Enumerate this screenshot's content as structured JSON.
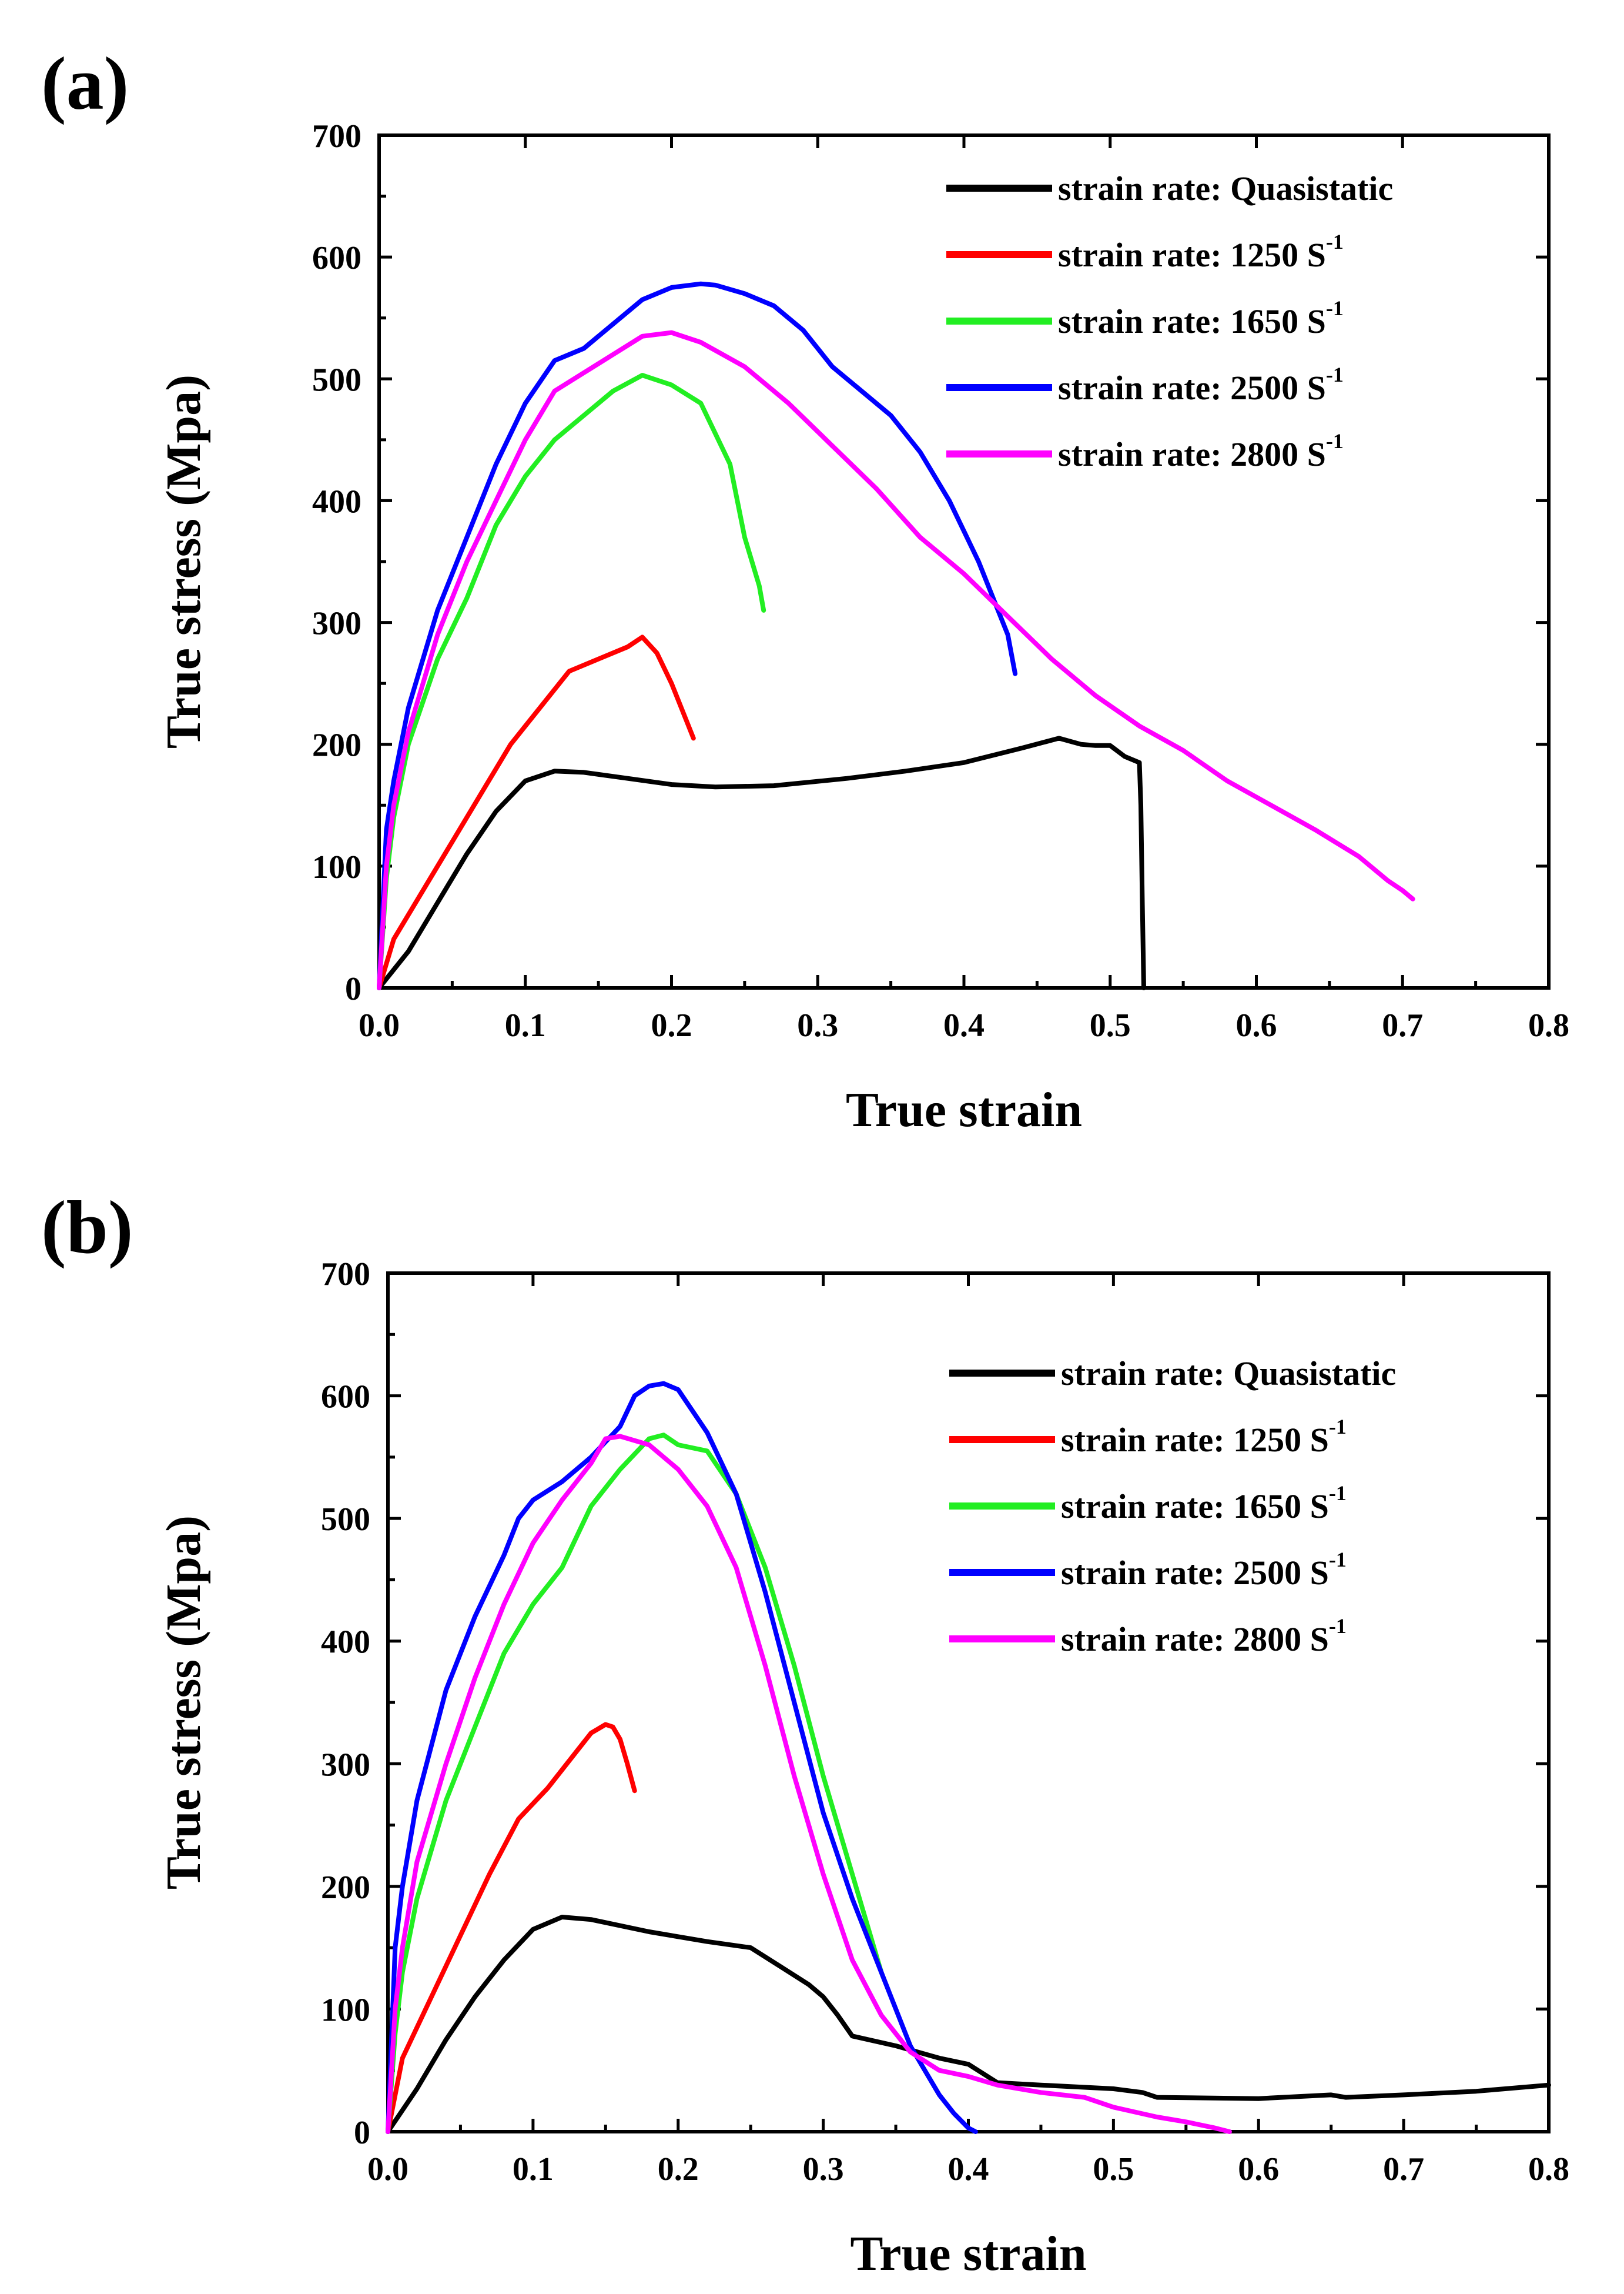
{
  "colors": {
    "quasistatic": "#000000",
    "r1250": "#ff0000",
    "r1650": "#22ee22",
    "r2500": "#0000ff",
    "r2800": "#ff00ff"
  },
  "chart_data": [
    {
      "type": "line",
      "panel_label": "(a)",
      "xlabel": "True strain",
      "ylabel": "True stress (Mpa)",
      "xlim": [
        0.0,
        0.8
      ],
      "ylim": [
        0,
        700
      ],
      "xticks": [
        "0.0",
        "0.1",
        "0.2",
        "0.3",
        "0.4",
        "0.5",
        "0.6",
        "0.7",
        "0.8"
      ],
      "yticks": [
        "0",
        "100",
        "200",
        "300",
        "400",
        "500",
        "600",
        "700"
      ],
      "legend_position": "top-right",
      "series": [
        {
          "key": "quasistatic",
          "label_main": "strain rate: Quasistatic",
          "label_sup": "",
          "x": [
            0,
            0.02,
            0.04,
            0.06,
            0.08,
            0.1,
            0.12,
            0.14,
            0.17,
            0.2,
            0.23,
            0.27,
            0.32,
            0.36,
            0.4,
            0.44,
            0.465,
            0.48,
            0.49,
            0.5,
            0.51,
            0.52,
            0.521,
            0.522,
            0.523
          ],
          "y": [
            0,
            30,
            70,
            110,
            145,
            170,
            178,
            177,
            172,
            167,
            165,
            166,
            172,
            178,
            185,
            197,
            205,
            200,
            199,
            199,
            190,
            185,
            150,
            70,
            0
          ]
        },
        {
          "key": "r1250",
          "label_main": "strain rate: 1250 S",
          "label_sup": "-1",
          "x": [
            0,
            0.01,
            0.03,
            0.05,
            0.07,
            0.09,
            0.11,
            0.13,
            0.15,
            0.17,
            0.18,
            0.19,
            0.2,
            0.21,
            0.215
          ],
          "y": [
            0,
            40,
            80,
            120,
            160,
            200,
            230,
            260,
            270,
            280,
            288,
            275,
            250,
            220,
            205
          ]
        },
        {
          "key": "r1650",
          "label_main": "strain rate: 1650 S",
          "label_sup": "-1",
          "x": [
            0,
            0.005,
            0.01,
            0.02,
            0.04,
            0.06,
            0.08,
            0.1,
            0.12,
            0.14,
            0.16,
            0.18,
            0.2,
            0.22,
            0.24,
            0.25,
            0.26,
            0.263
          ],
          "y": [
            0,
            90,
            140,
            200,
            270,
            320,
            380,
            420,
            450,
            470,
            490,
            503,
            495,
            480,
            430,
            370,
            330,
            310
          ]
        },
        {
          "key": "r2500",
          "label_main": "strain rate: 2500 S",
          "label_sup": "-1",
          "x": [
            0,
            0.005,
            0.01,
            0.02,
            0.04,
            0.06,
            0.08,
            0.1,
            0.12,
            0.14,
            0.16,
            0.18,
            0.2,
            0.22,
            0.23,
            0.25,
            0.27,
            0.29,
            0.31,
            0.33,
            0.35,
            0.37,
            0.39,
            0.41,
            0.42,
            0.43,
            0.435
          ],
          "y": [
            0,
            130,
            170,
            230,
            310,
            370,
            430,
            480,
            515,
            525,
            545,
            565,
            575,
            578,
            577,
            570,
            560,
            540,
            510,
            490,
            470,
            440,
            400,
            350,
            320,
            290,
            258
          ]
        },
        {
          "key": "r2800",
          "label_main": "strain rate: 2800 S",
          "label_sup": "-1",
          "x": [
            0,
            0.005,
            0.01,
            0.02,
            0.04,
            0.06,
            0.08,
            0.1,
            0.12,
            0.14,
            0.16,
            0.18,
            0.2,
            0.22,
            0.25,
            0.28,
            0.31,
            0.34,
            0.37,
            0.4,
            0.43,
            0.46,
            0.49,
            0.52,
            0.55,
            0.58,
            0.61,
            0.64,
            0.67,
            0.69,
            0.7,
            0.707
          ],
          "y": [
            0,
            100,
            150,
            210,
            290,
            350,
            400,
            450,
            490,
            505,
            520,
            535,
            538,
            530,
            510,
            480,
            445,
            410,
            370,
            340,
            305,
            270,
            240,
            215,
            195,
            170,
            150,
            130,
            108,
            88,
            80,
            73
          ]
        }
      ]
    },
    {
      "type": "line",
      "panel_label": "(b)",
      "xlabel": "True strain",
      "ylabel": "True stress (Mpa)",
      "xlim": [
        0.0,
        0.8
      ],
      "ylim": [
        0,
        700
      ],
      "xticks": [
        "0.0",
        "0.1",
        "0.2",
        "0.3",
        "0.4",
        "0.5",
        "0.6",
        "0.7",
        "0.8"
      ],
      "yticks": [
        "0",
        "100",
        "200",
        "300",
        "400",
        "500",
        "600",
        "700"
      ],
      "legend_position": "top-right",
      "series": [
        {
          "key": "quasistatic",
          "label_main": "strain rate: Quasistatic",
          "label_sup": "",
          "x": [
            0,
            0.02,
            0.04,
            0.06,
            0.08,
            0.1,
            0.12,
            0.14,
            0.18,
            0.22,
            0.25,
            0.27,
            0.29,
            0.3,
            0.31,
            0.32,
            0.35,
            0.38,
            0.4,
            0.42,
            0.45,
            0.5,
            0.52,
            0.53,
            0.6,
            0.65,
            0.66,
            0.7,
            0.75,
            0.8
          ],
          "y": [
            0,
            35,
            75,
            110,
            140,
            165,
            175,
            173,
            163,
            155,
            150,
            135,
            120,
            110,
            95,
            78,
            70,
            60,
            55,
            40,
            38,
            35,
            32,
            28,
            27,
            30,
            28,
            30,
            33,
            38
          ]
        },
        {
          "key": "r1250",
          "label_main": "strain rate: 1250 S",
          "label_sup": "-1",
          "x": [
            0,
            0.01,
            0.03,
            0.05,
            0.07,
            0.09,
            0.11,
            0.13,
            0.14,
            0.15,
            0.155,
            0.16,
            0.165,
            0.17
          ],
          "y": [
            0,
            60,
            110,
            160,
            210,
            255,
            280,
            310,
            325,
            332,
            330,
            320,
            300,
            278
          ]
        },
        {
          "key": "r1650",
          "label_main": "strain rate: 1650 S",
          "label_sup": "-1",
          "x": [
            0,
            0.005,
            0.01,
            0.02,
            0.04,
            0.06,
            0.08,
            0.1,
            0.12,
            0.14,
            0.16,
            0.18,
            0.19,
            0.2,
            0.22,
            0.24,
            0.26,
            0.28,
            0.3,
            0.32,
            0.34
          ],
          "y": [
            0,
            80,
            130,
            190,
            270,
            330,
            390,
            430,
            460,
            510,
            540,
            565,
            568,
            560,
            555,
            520,
            460,
            380,
            290,
            210,
            130
          ]
        },
        {
          "key": "r2500",
          "label_main": "strain rate: 2500 S",
          "label_sup": "-1",
          "x": [
            0,
            0.005,
            0.01,
            0.02,
            0.04,
            0.06,
            0.08,
            0.09,
            0.1,
            0.12,
            0.14,
            0.16,
            0.17,
            0.18,
            0.19,
            0.2,
            0.22,
            0.24,
            0.26,
            0.28,
            0.3,
            0.32,
            0.34,
            0.36,
            0.38,
            0.39,
            0.4,
            0.405
          ],
          "y": [
            0,
            150,
            200,
            270,
            360,
            420,
            470,
            500,
            515,
            530,
            550,
            575,
            600,
            608,
            610,
            605,
            570,
            520,
            440,
            350,
            260,
            190,
            130,
            70,
            30,
            15,
            3,
            0
          ]
        },
        {
          "key": "r2800",
          "label_main": "strain rate: 2800 S",
          "label_sup": "-1",
          "x": [
            0,
            0.005,
            0.01,
            0.02,
            0.04,
            0.06,
            0.08,
            0.1,
            0.12,
            0.14,
            0.15,
            0.16,
            0.18,
            0.2,
            0.22,
            0.24,
            0.26,
            0.28,
            0.3,
            0.32,
            0.34,
            0.36,
            0.38,
            0.4,
            0.42,
            0.45,
            0.48,
            0.5,
            0.53,
            0.55,
            0.57,
            0.58
          ],
          "y": [
            0,
            100,
            150,
            220,
            300,
            370,
            430,
            480,
            515,
            545,
            565,
            567,
            560,
            540,
            510,
            460,
            380,
            290,
            210,
            140,
            95,
            65,
            50,
            45,
            38,
            32,
            28,
            20,
            12,
            8,
            3,
            0
          ]
        }
      ]
    }
  ]
}
